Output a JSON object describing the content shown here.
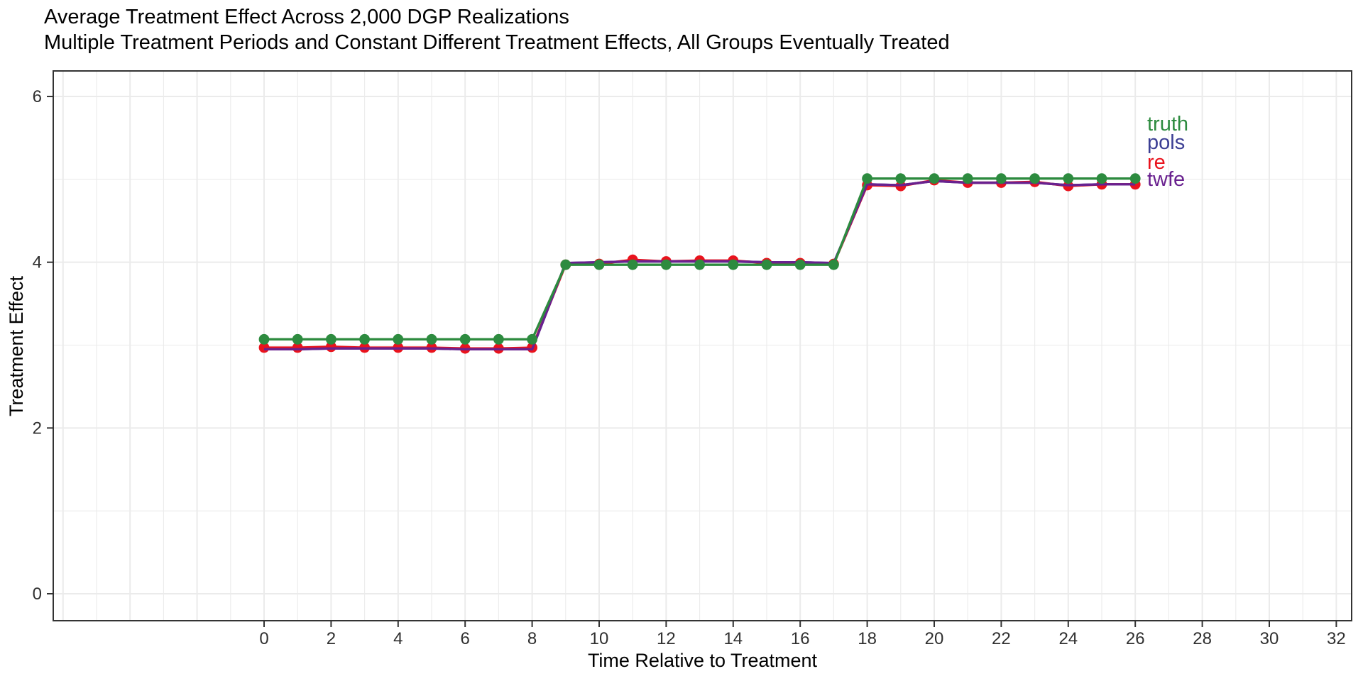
{
  "chart_data": {
    "type": "line",
    "title": "Average Treatment Effect Across 2,000 DGP Realizations",
    "subtitle": "Multiple Treatment Periods and Constant Different Treatment Effects, All Groups Eventually Treated",
    "xlabel": "Time Relative to Treatment",
    "ylabel": "Treatment Effect",
    "x_axis": {
      "ticks": [
        0,
        2,
        4,
        6,
        8,
        10,
        12,
        14,
        16,
        18,
        20,
        22,
        24,
        26,
        28,
        30,
        32
      ]
    },
    "y_axis": {
      "ticks": [
        0,
        2,
        4,
        6
      ]
    },
    "ylim": [
      0,
      6
    ],
    "grid": "major and minor light-grey gridlines, white panel, dark panel border",
    "legend_position": "direct colored labels at right end of lines",
    "x": [
      0,
      1,
      2,
      3,
      4,
      5,
      6,
      7,
      8,
      9,
      10,
      11,
      12,
      13,
      14,
      15,
      16,
      17,
      18,
      19,
      20,
      21,
      22,
      23,
      24,
      25,
      26
    ],
    "series": [
      {
        "name": "truth",
        "color": "#2D8B3F",
        "values": [
          3.07,
          3.07,
          3.07,
          3.07,
          3.07,
          3.07,
          3.07,
          3.07,
          3.07,
          3.97,
          3.97,
          3.97,
          3.97,
          3.97,
          3.97,
          3.97,
          3.97,
          3.97,
          5.01,
          5.01,
          5.01,
          5.01,
          5.01,
          5.01,
          5.01,
          5.01,
          5.01
        ]
      },
      {
        "name": "pols",
        "color": "#3C3F94",
        "values": [
          2.95,
          2.95,
          2.96,
          2.96,
          2.96,
          2.96,
          2.95,
          2.95,
          2.95,
          3.99,
          4.0,
          4.01,
          4.01,
          4.01,
          4.01,
          4.0,
          4.0,
          3.99,
          4.94,
          4.93,
          4.98,
          4.96,
          4.96,
          4.96,
          4.93,
          4.94,
          4.94
        ]
      },
      {
        "name": "re",
        "color": "#E9131D",
        "values": [
          2.97,
          2.97,
          2.98,
          2.97,
          2.97,
          2.97,
          2.96,
          2.96,
          2.97,
          3.97,
          3.98,
          4.03,
          4.01,
          4.02,
          4.02,
          3.99,
          3.99,
          3.98,
          4.93,
          4.92,
          4.99,
          4.96,
          4.96,
          4.97,
          4.92,
          4.94,
          4.94
        ]
      },
      {
        "name": "twfe",
        "color": "#69218F",
        "values": [
          2.95,
          2.95,
          2.96,
          2.96,
          2.96,
          2.96,
          2.95,
          2.95,
          2.95,
          3.99,
          4.0,
          4.01,
          4.01,
          4.01,
          4.01,
          4.0,
          4.0,
          3.99,
          4.94,
          4.93,
          4.98,
          4.96,
          4.96,
          4.96,
          4.93,
          4.94,
          4.94
        ]
      }
    ]
  }
}
